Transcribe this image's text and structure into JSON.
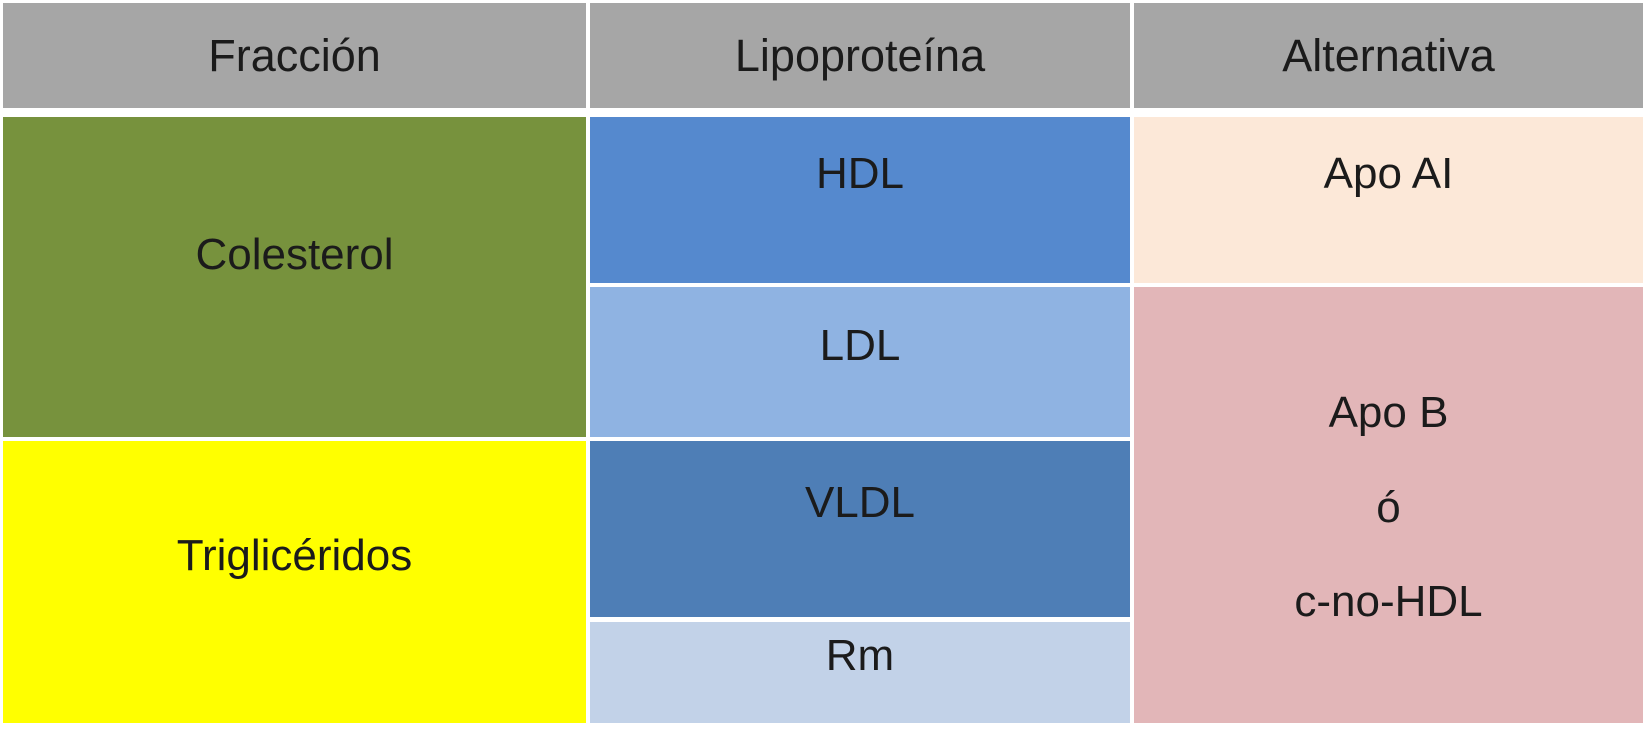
{
  "table": {
    "headers": {
      "fraccion": "Fracción",
      "lipoproteina": "Lipoproteína",
      "alternativa": "Alternativa"
    },
    "fraccion_cells": {
      "colesterol": "Colesterol",
      "trigliceridos": "Triglicéridos"
    },
    "lipoproteina_cells": {
      "hdl": "HDL",
      "ldl": "LDL",
      "vldl": "VLDL",
      "rm": "Rm"
    },
    "alternativa_cells": {
      "apo_ai": "Apo AI",
      "apo_b_line1": "Apo B",
      "apo_b_line2": "ó",
      "apo_b_line3": "c-no-HDL"
    }
  },
  "colors": {
    "header_gray": "#A6A6A6",
    "colesterol_green": "#77923D",
    "trigliceridos_yellow": "#FFFF00",
    "hdl_blue": "#5589CE",
    "ldl_blue": "#8FB3E2",
    "vldl_blue": "#4E7EB6",
    "rm_light_blue": "#C2D2E8",
    "apo_ai_peach": "#FCE8D8",
    "apo_b_pink": "#E2B6B8",
    "text": "#1b1b1b",
    "grid_gap_white": "#FFFFFF"
  },
  "chart_data": {
    "type": "table",
    "title": "",
    "columns": [
      "Fracción",
      "Lipoproteína",
      "Alternativa"
    ],
    "rows": [
      {
        "fraccion": "Colesterol",
        "lipoproteina": "HDL",
        "alternativa": "Apo AI"
      },
      {
        "fraccion": "Colesterol",
        "lipoproteina": "LDL",
        "alternativa": "Apo B ó c-no-HDL"
      },
      {
        "fraccion": "Triglicéridos",
        "lipoproteina": "VLDL",
        "alternativa": "Apo B ó c-no-HDL"
      },
      {
        "fraccion": "Triglicéridos",
        "lipoproteina": "Rm",
        "alternativa": "Apo B ó c-no-HDL"
      }
    ],
    "merged_cells": [
      {
        "column": "Fracción",
        "value": "Colesterol",
        "spans_rows": [
          1,
          2
        ]
      },
      {
        "column": "Fracción",
        "value": "Triglicéridos",
        "spans_rows": [
          3,
          4
        ]
      },
      {
        "column": "Alternativa",
        "value": "Apo B ó c-no-HDL",
        "spans_rows": [
          2,
          3,
          4
        ]
      }
    ],
    "legend_position": "none",
    "grid": false
  }
}
